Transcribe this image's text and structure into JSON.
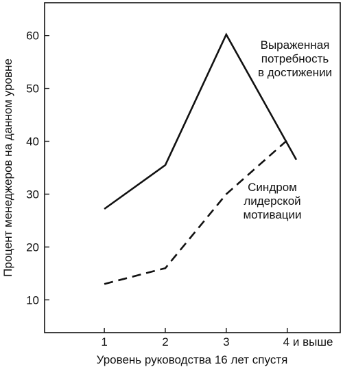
{
  "chart_data": {
    "type": "line",
    "xlabel": "Уровень руководства 16 лет спустя",
    "ylabel": "Процент менеджеров на данном уровне",
    "categories": [
      "1",
      "2",
      "3",
      "4 и выше"
    ],
    "xlim": [
      0.02,
      4.87
    ],
    "ylim": [
      3.8,
      66.2
    ],
    "yticks": [
      10,
      20,
      30,
      40,
      50,
      60
    ],
    "grid": false,
    "series": [
      {
        "name_lines": [
          "Выраженная",
          "потребность",
          "в достижении"
        ],
        "style": "solid",
        "x": [
          1,
          2,
          3,
          4.15
        ],
        "values": [
          27.2,
          35.5,
          60.2,
          36.5
        ]
      },
      {
        "name_lines": [
          "Синдром",
          "лидерской",
          "мотивации"
        ],
        "style": "dashed",
        "x": [
          1,
          2,
          3,
          4
        ],
        "values": [
          13,
          16,
          30,
          40.2
        ]
      }
    ]
  }
}
